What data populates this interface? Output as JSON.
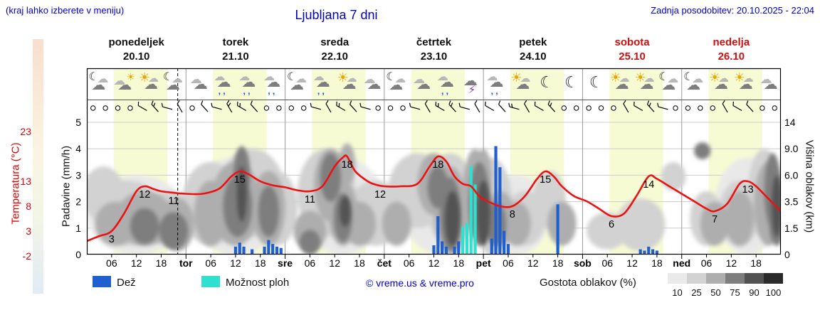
{
  "header": {
    "hint": "(kraj lahko izberete v meniju)",
    "title": "Ljubljana 7 dni",
    "last_update": "Zadnja posodobitev: 20.10.2025 - 22:04"
  },
  "axes": {
    "temp_title": "Temperatura (°C)",
    "precip_title": "Padavine (mm/h)",
    "cloud_title": "Višina oblakov (km)"
  },
  "legend": {
    "rain_label": "Dež",
    "showers_label": "Možnost ploh",
    "copyright": "© vreme.us & vreme.pro",
    "density_title": "Gostota oblakov (%)",
    "density_levels": [
      {
        "pct": "10",
        "color": "#eaeaea"
      },
      {
        "pct": "25",
        "color": "#d2d2d2"
      },
      {
        "pct": "50",
        "color": "#aeaeae"
      },
      {
        "pct": "75",
        "color": "#7e7e7e"
      },
      {
        "pct": "90",
        "color": "#525252"
      },
      {
        "pct": "100",
        "color": "#2a2a2a"
      }
    ]
  },
  "chart_data": {
    "type": "meteogram",
    "days": [
      {
        "name": "ponedeljek",
        "date": "20.10",
        "weekend": false
      },
      {
        "name": "torek",
        "date": "21.10",
        "weekend": false
      },
      {
        "name": "sreda",
        "date": "22.10",
        "weekend": false
      },
      {
        "name": "četrtek",
        "date": "23.10",
        "weekend": false
      },
      {
        "name": "petek",
        "date": "24.10",
        "weekend": false
      },
      {
        "name": "sobota",
        "date": "25.10",
        "weekend": true
      },
      {
        "name": "nedelja",
        "date": "26.10",
        "weekend": true
      }
    ],
    "day_abbrs": [
      "tor",
      "sre",
      "čet",
      "pet",
      "sob",
      "ned"
    ],
    "hour_tick_labels": [
      "06",
      "12",
      "18"
    ],
    "daylight": {
      "start_h": 6.5,
      "end_h": 19.5,
      "color": "#f7fbd4"
    },
    "now_h": 22,
    "temp_axis": {
      "ticks": [
        23,
        13,
        8,
        3,
        -2
      ],
      "color": "#dd0000"
    },
    "precip_axis": {
      "ticks": [
        5,
        4,
        3,
        2,
        1,
        0
      ]
    },
    "cloud_axis": {
      "ticks": [
        {
          "km": 14,
          "label": "14"
        },
        {
          "km": 9,
          "label": "9.0"
        },
        {
          "km": 6,
          "label": "6.0"
        },
        {
          "km": 3.5,
          "label": "3.5"
        },
        {
          "km": 1.5,
          "label": "1.5"
        },
        {
          "km": 0,
          "label": "0"
        }
      ],
      "km_anchors": [
        [
          0,
          0
        ],
        [
          1.5,
          1
        ],
        [
          3.5,
          2
        ],
        [
          6,
          3
        ],
        [
          9,
          4
        ],
        [
          14,
          5
        ]
      ]
    },
    "temperature": {
      "color": "#ee1111",
      "points": [
        [
          0,
          1
        ],
        [
          3,
          2
        ],
        [
          6,
          3
        ],
        [
          9,
          6.5
        ],
        [
          12,
          11
        ],
        [
          14,
          12
        ],
        [
          16,
          11.5
        ],
        [
          18,
          11
        ],
        [
          21,
          10.7
        ],
        [
          24,
          10.5
        ],
        [
          28,
          10.5
        ],
        [
          32,
          11.5
        ],
        [
          35,
          14
        ],
        [
          37,
          15
        ],
        [
          39,
          14.5
        ],
        [
          42,
          13
        ],
        [
          45,
          12.2
        ],
        [
          48,
          11.8
        ],
        [
          51,
          11.2
        ],
        [
          54,
          11
        ],
        [
          57,
          12
        ],
        [
          60,
          16
        ],
        [
          62,
          17.8
        ],
        [
          63,
          18
        ],
        [
          65,
          15
        ],
        [
          68,
          13
        ],
        [
          70,
          12.3
        ],
        [
          72,
          12
        ],
        [
          76,
          12
        ],
        [
          80,
          12.5
        ],
        [
          83,
          16
        ],
        [
          85,
          18
        ],
        [
          87,
          17
        ],
        [
          89,
          14
        ],
        [
          91,
          12.5
        ],
        [
          93,
          12
        ],
        [
          95,
          10
        ],
        [
          97,
          9
        ],
        [
          100,
          8
        ],
        [
          103,
          8
        ],
        [
          106,
          10
        ],
        [
          109,
          13.5
        ],
        [
          111,
          15
        ],
        [
          113,
          14
        ],
        [
          115,
          12
        ],
        [
          118,
          10
        ],
        [
          121,
          9
        ],
        [
          124,
          7.5
        ],
        [
          127,
          6
        ],
        [
          130,
          6.5
        ],
        [
          133,
          10
        ],
        [
          136,
          14
        ],
        [
          138,
          13.5
        ],
        [
          141,
          12
        ],
        [
          144,
          10.5
        ],
        [
          147,
          9
        ],
        [
          150,
          7.5
        ],
        [
          152,
          7
        ],
        [
          155,
          8.5
        ],
        [
          158,
          12.5
        ],
        [
          160,
          13
        ],
        [
          162,
          12
        ],
        [
          165,
          9.5
        ],
        [
          168,
          7
        ]
      ],
      "labels": [
        [
          6,
          3,
          "3"
        ],
        [
          14,
          12,
          "12"
        ],
        [
          21,
          10.7,
          "11"
        ],
        [
          37,
          15,
          "15"
        ],
        [
          54,
          11,
          "11"
        ],
        [
          63,
          18,
          "18"
        ],
        [
          71,
          12,
          "12"
        ],
        [
          85,
          18,
          "18"
        ],
        [
          103,
          8,
          "8"
        ],
        [
          111,
          15,
          "15"
        ],
        [
          127,
          6,
          "6"
        ],
        [
          136,
          14,
          "14"
        ],
        [
          152,
          7,
          "7"
        ],
        [
          160,
          13,
          "13"
        ]
      ]
    },
    "rain": {
      "color": "#1f5fd0",
      "bars": [
        [
          36,
          0.3
        ],
        [
          37,
          0.45
        ],
        [
          38,
          0.3
        ],
        [
          40,
          0.2
        ],
        [
          43,
          0.3
        ],
        [
          44,
          0.55
        ],
        [
          45,
          0.4
        ],
        [
          46,
          0.3
        ],
        [
          47,
          0.25
        ],
        [
          84,
          0.35
        ],
        [
          85,
          1.45
        ],
        [
          86,
          0.5
        ],
        [
          87,
          0.3
        ],
        [
          89,
          0.3
        ],
        [
          90,
          0.5
        ],
        [
          98,
          0.6
        ],
        [
          99,
          4.1
        ],
        [
          100,
          3.3
        ],
        [
          101,
          0.9
        ],
        [
          102,
          0.4
        ],
        [
          114,
          1.9
        ],
        [
          134,
          0.2
        ],
        [
          135,
          0.15
        ],
        [
          136,
          0.3
        ],
        [
          137,
          0.2
        ],
        [
          138,
          0.15
        ]
      ]
    },
    "showers": {
      "color": "#2fe0cf",
      "bars": [
        [
          91,
          1.05
        ],
        [
          92,
          1.2
        ],
        [
          93,
          3.35
        ],
        [
          94,
          2.65
        ]
      ]
    },
    "clouds": {
      "levels": {
        "10": "#e9e9e9",
        "25": "#d2d2d2",
        "50": "#aeaeae",
        "75": "#7e7e7e",
        "90": "#525252"
      },
      "blobs": [
        [
          12,
          3,
          12,
          3,
          10
        ],
        [
          36,
          4,
          12,
          4,
          10
        ],
        [
          62,
          4,
          10,
          4,
          10
        ],
        [
          86,
          4,
          10,
          4,
          10
        ],
        [
          104,
          3,
          8,
          3,
          10
        ],
        [
          160,
          4,
          8,
          4,
          10
        ],
        [
          4,
          4.5,
          5,
          2.5,
          25
        ],
        [
          10,
          3,
          8,
          2.5,
          25
        ],
        [
          20,
          2.5,
          6,
          2,
          25
        ],
        [
          30,
          4,
          7,
          3.5,
          25
        ],
        [
          40,
          5,
          8,
          4,
          25
        ],
        [
          46,
          3.5,
          5,
          3,
          25
        ],
        [
          58,
          5,
          7,
          4,
          25
        ],
        [
          70,
          3,
          7,
          2.5,
          25
        ],
        [
          80,
          5,
          7,
          3.5,
          25
        ],
        [
          88,
          4.5,
          6,
          4,
          25
        ],
        [
          98,
          4,
          5,
          4,
          25
        ],
        [
          106,
          2.5,
          5,
          2,
          25
        ],
        [
          112,
          4,
          4,
          2.5,
          25
        ],
        [
          126,
          1.5,
          5,
          1.2,
          25
        ],
        [
          134,
          2,
          6,
          1.8,
          25
        ],
        [
          142,
          6,
          3,
          1.5,
          25
        ],
        [
          150,
          2.5,
          4,
          2,
          25
        ],
        [
          158,
          3,
          5,
          2.5,
          25
        ],
        [
          164,
          5,
          4,
          4,
          25
        ],
        [
          7,
          2,
          5,
          1.5,
          50
        ],
        [
          14,
          2.5,
          7,
          2,
          50
        ],
        [
          22,
          2,
          4,
          1.8,
          50
        ],
        [
          30,
          3,
          4,
          2.5,
          50
        ],
        [
          36,
          4,
          6,
          3.5,
          50
        ],
        [
          44,
          3.5,
          4,
          3,
          50
        ],
        [
          54,
          1.5,
          4,
          1.3,
          50
        ],
        [
          59,
          5.5,
          4,
          3.5,
          50
        ],
        [
          63,
          7.5,
          2,
          2.5,
          50
        ],
        [
          62,
          3,
          3.5,
          2.5,
          50
        ],
        [
          66,
          2,
          4,
          1.5,
          50
        ],
        [
          75,
          2,
          3.5,
          1.5,
          50
        ],
        [
          84,
          5.5,
          4,
          3,
          50
        ],
        [
          88,
          3.5,
          4,
          3.5,
          50
        ],
        [
          94,
          5,
          3,
          4,
          50
        ],
        [
          96,
          6,
          2,
          3,
          50
        ],
        [
          100,
          2.5,
          3.5,
          2,
          50
        ],
        [
          104,
          2,
          3.5,
          1.5,
          50
        ],
        [
          115,
          2,
          3.5,
          1.5,
          50
        ],
        [
          152,
          2,
          3.5,
          1.5,
          50
        ],
        [
          158,
          2.5,
          3.5,
          2,
          50
        ],
        [
          165,
          4,
          3.5,
          3.5,
          50
        ],
        [
          14,
          1.8,
          3.5,
          1.2,
          75
        ],
        [
          21,
          1.5,
          3.5,
          1.2,
          75
        ],
        [
          36.5,
          3.5,
          3.5,
          2.5,
          75
        ],
        [
          37.5,
          6.5,
          2,
          3,
          75
        ],
        [
          44,
          3,
          2.5,
          2,
          75
        ],
        [
          54,
          0.7,
          2.5,
          0.7,
          75
        ],
        [
          59,
          6,
          2.5,
          2.5,
          75
        ],
        [
          62,
          2.5,
          2.2,
          1.8,
          75
        ],
        [
          85,
          5,
          2.5,
          2,
          75
        ],
        [
          88,
          3,
          2.5,
          2.8,
          75
        ],
        [
          95,
          4,
          2.5,
          3.5,
          75
        ],
        [
          99,
          2,
          2.5,
          1.5,
          75
        ],
        [
          149,
          9,
          2,
          1.2,
          75
        ],
        [
          166,
          5,
          2,
          3.5,
          75
        ],
        [
          167,
          2,
          1.8,
          1.5,
          75
        ],
        [
          37.5,
          4.5,
          1.2,
          2.5,
          90
        ],
        [
          62.5,
          2.8,
          1.3,
          1.2,
          90
        ],
        [
          88.5,
          2.5,
          1.8,
          2,
          90
        ],
        [
          96,
          3,
          1.6,
          2.5,
          90
        ],
        [
          167,
          3.5,
          1.2,
          2.5,
          90
        ]
      ]
    },
    "icons": [
      "moon-cloud",
      "cloud-sun",
      "sun-cloud",
      "moon-cloud",
      "cloud",
      "rain",
      "rain",
      "rain",
      "moon-cloud",
      "rain",
      "sun-cloud",
      "cloud",
      "moon-cloud",
      "cloud",
      "rain",
      "storm",
      "rain",
      "sun-cloud",
      "moon",
      "moon",
      "moon",
      "sun-cloud",
      "sun-cloud",
      "moon-cloud",
      "moon-cloud",
      "sun-cloud",
      "sun-cloud",
      "cloud"
    ],
    "wind": [
      "c",
      "c",
      "c",
      "c",
      "1",
      "2",
      "1",
      "1",
      "c",
      "1",
      "1",
      "2",
      "2",
      "1",
      "c",
      "c",
      "c",
      "c",
      "1",
      "1",
      "2",
      "1",
      "1",
      "c",
      "c",
      "c",
      "1",
      "1",
      "2",
      "2",
      "1",
      "1",
      "1",
      "1",
      "2",
      "1",
      "1",
      "2",
      "c",
      "c",
      "c",
      "c",
      "c",
      "1",
      "1",
      "2",
      "1",
      "c",
      "c",
      "c",
      "c",
      "1",
      "1",
      "1",
      "c",
      "c"
    ]
  }
}
